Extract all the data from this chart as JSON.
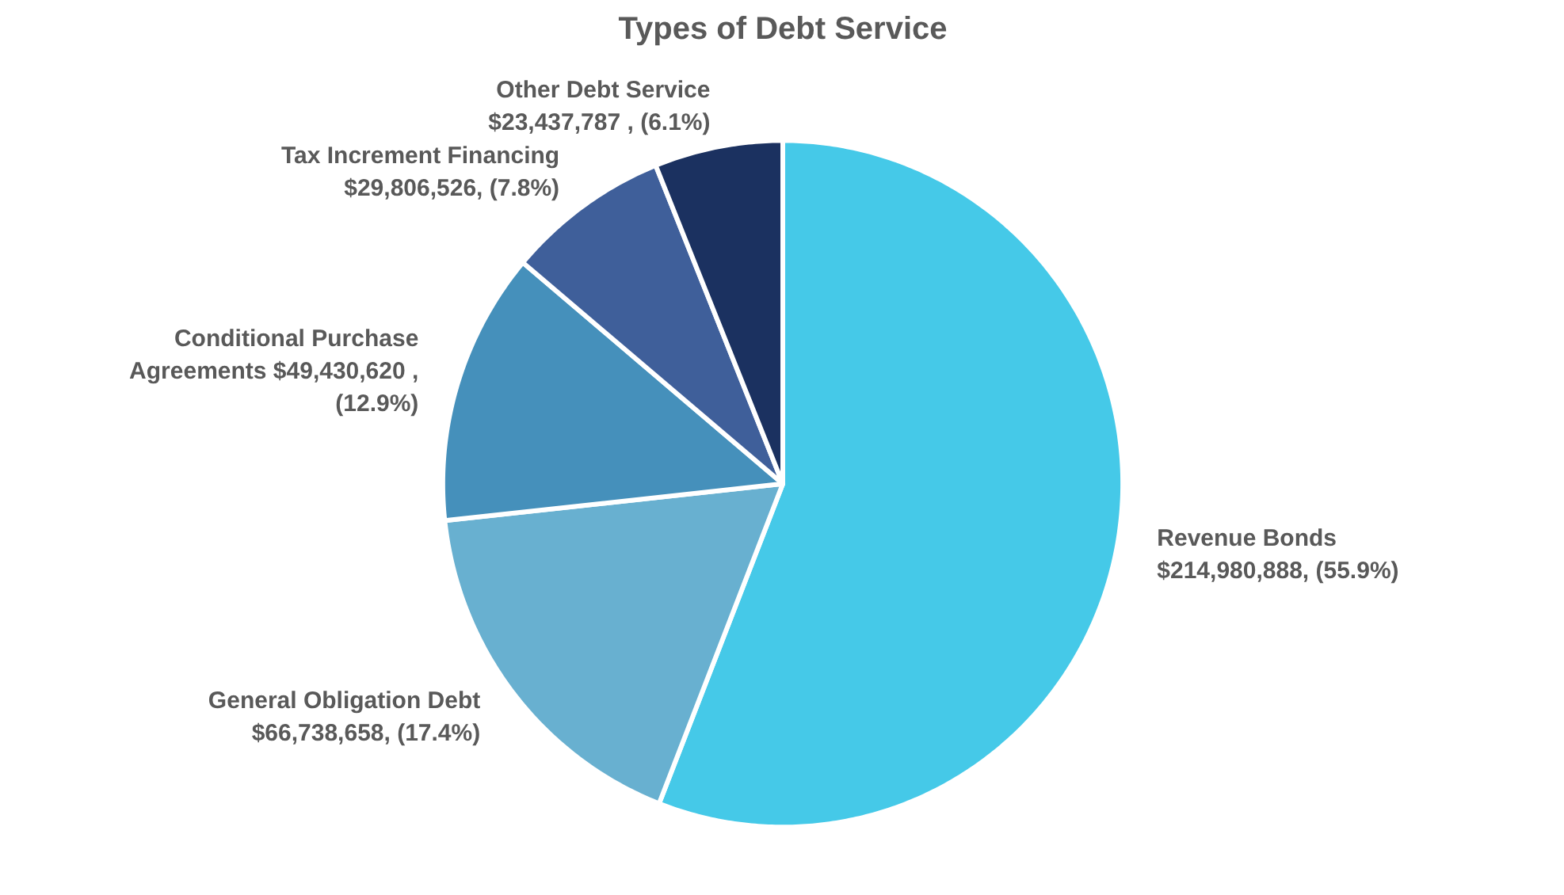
{
  "chart_data": {
    "type": "pie",
    "title": "Types of Debt Service",
    "categories": [
      "Revenue Bonds",
      "General Obligation Debt",
      "Conditional Purchase Agreements",
      "Tax Increment Financing",
      "Other Debt Service"
    ],
    "values": [
      214980888,
      66738658,
      49430620,
      29806526,
      23437787
    ],
    "colors": [
      "#45c9e8",
      "#68b0d0",
      "#4590bb",
      "#3f5f9a",
      "#1b3160"
    ],
    "value_labels": [
      "$214,980,888, (55.9%)",
      "$66,738,658, (17.4%)",
      "$49,430,620 , (12.9%)",
      "$29,806,526, (7.8%)",
      "$23,437,787 , (6.1%)"
    ]
  }
}
